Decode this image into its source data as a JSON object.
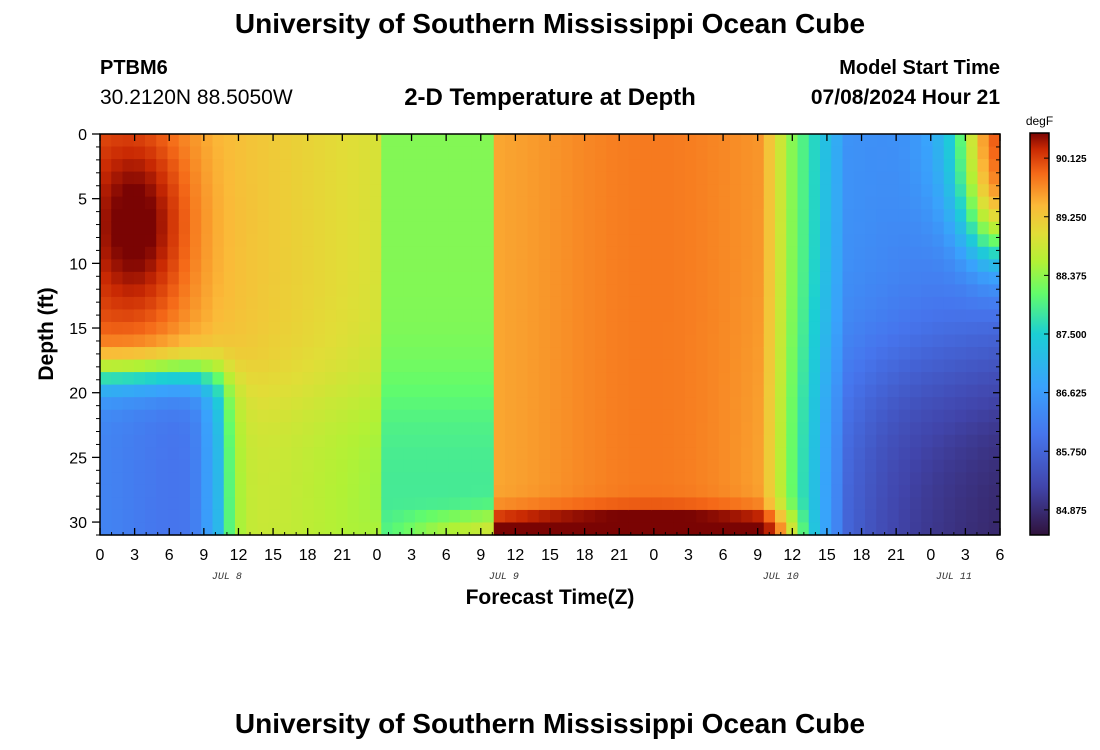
{
  "header": {
    "title": "University of Southern Mississippi Ocean Cube",
    "station": "PTBM6",
    "coords": "30.2120N  88.5050W",
    "subtitle": "2-D Temperature at Depth",
    "model_start_label": "Model Start Time",
    "model_start_value": "07/08/2024 Hour 21"
  },
  "footer": {
    "title": "University of Southern Mississippi Ocean Cube"
  },
  "chart_data": {
    "type": "heatmap",
    "title": "2-D Temperature at Depth",
    "xlabel": "Forecast Time(Z)",
    "ylabel": "Depth (ft)",
    "x_range_hours": [
      0,
      78
    ],
    "y_range_ft": [
      0,
      31
    ],
    "x_tick_labels": [
      "0",
      "3",
      "6",
      "9",
      "12",
      "15",
      "18",
      "21",
      "0",
      "3",
      "6",
      "9",
      "12",
      "15",
      "18",
      "21",
      "0",
      "3",
      "6",
      "9",
      "12",
      "15",
      "18",
      "21",
      "0",
      "3",
      "6"
    ],
    "y_tick_labels": [
      "0",
      "5",
      "10",
      "15",
      "20",
      "25",
      "30"
    ],
    "y_tick_values": [
      0,
      5,
      10,
      15,
      20,
      25,
      30
    ],
    "date_labels": [
      {
        "label": "JUL 8",
        "hour": 11
      },
      {
        "label": "JUL 9",
        "hour": 35
      },
      {
        "label": "JUL 10",
        "hour": 59
      },
      {
        "label": "JUL 11",
        "hour": 74
      }
    ],
    "colorbar": {
      "unit": "degF",
      "min": 84.5,
      "max": 90.5,
      "tick_labels": [
        "90.125",
        "89.250",
        "88.375",
        "87.500",
        "86.625",
        "85.750",
        "84.875"
      ],
      "tick_values": [
        90.125,
        89.25,
        88.375,
        87.5,
        86.625,
        85.75,
        84.875
      ]
    },
    "grid": false
  }
}
